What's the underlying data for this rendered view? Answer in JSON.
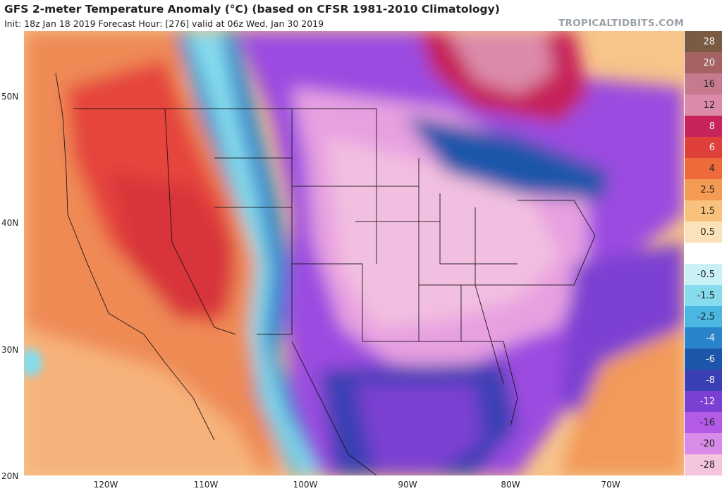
{
  "header": {
    "title": "GFS 2-meter Temperature Anomaly (°C) (based on CFSR 1981-2010 Climatology)",
    "subtitle": "Init: 18z Jan 18 2019   Forecast Hour: [276]   valid at 06z Wed, Jan 30 2019",
    "brand": "TROPICALTIDBITS.COM"
  },
  "axes": {
    "lat_labels": [
      "50N",
      "40N",
      "30N",
      "20N"
    ],
    "lon_labels": [
      "120W",
      "110W",
      "100W",
      "90W",
      "80W",
      "70W"
    ]
  },
  "colorbar": {
    "levels": [
      {
        "label": "28",
        "color": "#7a5a40"
      },
      {
        "label": "20",
        "color": "#a56262"
      },
      {
        "label": "16",
        "color": "#c77a8e"
      },
      {
        "label": "12",
        "color": "#dc8aaa"
      },
      {
        "label": "8",
        "color": "#c6245a"
      },
      {
        "label": "6",
        "color": "#e0403c"
      },
      {
        "label": "4",
        "color": "#ee6a3a"
      },
      {
        "label": "2.5",
        "color": "#f59a52"
      },
      {
        "label": "1.5",
        "color": "#f8c27c"
      },
      {
        "label": "0.5",
        "color": "#fbe2b8"
      },
      {
        "label": "",
        "color": "#ffffff"
      },
      {
        "label": "-0.5",
        "color": "#c9f1f6"
      },
      {
        "label": "-1.5",
        "color": "#86dcec"
      },
      {
        "label": "-2.5",
        "color": "#49b7e2"
      },
      {
        "label": "-4",
        "color": "#2a84cc"
      },
      {
        "label": "-6",
        "color": "#1c56aa"
      },
      {
        "label": "-8",
        "color": "#3a3fb4"
      },
      {
        "label": "-12",
        "color": "#7b3fd2"
      },
      {
        "label": "-16",
        "color": "#b35ae6"
      },
      {
        "label": "-20",
        "color": "#d88ce8"
      },
      {
        "label": "-28",
        "color": "#f5c4dd"
      }
    ]
  }
}
